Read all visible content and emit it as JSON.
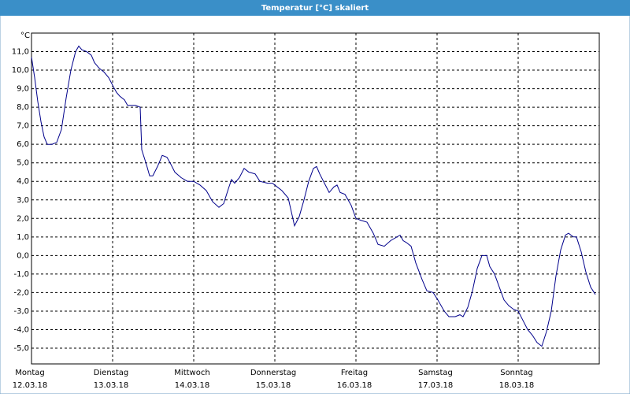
{
  "chart_data": {
    "type": "line",
    "title": "Temperatur [°C] skaliert",
    "y_unit": "°C",
    "x": [
      0,
      0.039,
      0.078,
      0.117,
      0.155,
      0.194,
      0.252,
      0.311,
      0.369,
      0.427,
      0.485,
      0.544,
      0.583,
      0.621,
      0.68,
      0.738,
      0.777,
      0.835,
      0.893,
      0.951,
      1.01,
      1.049,
      1.087,
      1.146,
      1.184,
      1.243,
      1.282,
      1.34,
      1.359,
      1.417,
      1.456,
      1.495,
      1.553,
      1.612,
      1.67,
      1.709,
      1.767,
      1.845,
      1.922,
      2.0,
      2.078,
      2.155,
      2.233,
      2.311,
      2.369,
      2.427,
      2.466,
      2.505,
      2.563,
      2.621,
      2.68,
      2.757,
      2.816,
      2.913,
      2.971,
      3.029,
      3.087,
      3.165,
      3.243,
      3.301,
      3.359,
      3.417,
      3.476,
      3.515,
      3.553,
      3.612,
      3.67,
      3.728,
      3.767,
      3.806,
      3.864,
      3.942,
      4.0,
      4.058,
      4.136,
      4.214,
      4.272,
      4.35,
      4.427,
      4.505,
      4.544,
      4.583,
      4.621,
      4.68,
      4.738,
      4.816,
      4.874,
      4.951,
      5.01,
      5.087,
      5.146,
      5.223,
      5.282,
      5.32,
      5.379,
      5.437,
      5.495,
      5.553,
      5.612,
      5.65,
      5.709,
      5.767,
      5.825,
      5.883,
      5.942,
      6.0,
      6.058,
      6.117,
      6.175,
      6.233,
      6.291,
      6.35,
      6.408,
      6.466,
      6.524,
      6.583,
      6.621,
      6.68,
      6.718,
      6.777,
      6.835,
      6.893,
      6.951
    ],
    "series": [
      {
        "name": "Temperatur",
        "color": "#00008b",
        "values": [
          10.7,
          9.6,
          8.3,
          7.2,
          6.4,
          6.0,
          6.0,
          6.1,
          6.8,
          8.5,
          10.0,
          11.0,
          11.3,
          11.1,
          11.0,
          10.8,
          10.4,
          10.1,
          9.9,
          9.6,
          9.1,
          8.8,
          8.6,
          8.4,
          8.1,
          8.1,
          8.1,
          8.0,
          5.7,
          4.9,
          4.3,
          4.3,
          4.8,
          5.4,
          5.3,
          5.0,
          4.5,
          4.2,
          4.0,
          4.0,
          3.8,
          3.5,
          2.9,
          2.6,
          2.8,
          3.6,
          4.1,
          3.9,
          4.2,
          4.7,
          4.5,
          4.4,
          4.0,
          3.9,
          3.9,
          3.7,
          3.5,
          3.1,
          1.6,
          2.1,
          3.0,
          4.0,
          4.7,
          4.8,
          4.4,
          3.9,
          3.4,
          3.7,
          3.8,
          3.4,
          3.3,
          2.7,
          2.0,
          1.9,
          1.8,
          1.2,
          0.6,
          0.5,
          0.8,
          1.0,
          1.1,
          0.8,
          0.7,
          0.5,
          -0.4,
          -1.3,
          -1.9,
          -2.0,
          -2.4,
          -3.0,
          -3.3,
          -3.3,
          -3.2,
          -3.3,
          -2.8,
          -1.9,
          -0.7,
          0.0,
          0.0,
          -0.6,
          -1.0,
          -1.7,
          -2.4,
          -2.7,
          -2.9,
          -3.0,
          -3.5,
          -4.0,
          -4.3,
          -4.7,
          -4.9,
          -4.1,
          -3.0,
          -1.1,
          0.3,
          1.1,
          1.2,
          1.0,
          1.0,
          0.2,
          -0.9,
          -1.7,
          -2.1
        ]
      }
    ],
    "xlim": [
      0,
      7
    ],
    "xticks": [
      {
        "value": 0,
        "label": "12.03.18"
      },
      {
        "value": 1,
        "label": "13.03.18"
      },
      {
        "value": 2,
        "label": "14.03.18"
      },
      {
        "value": 3,
        "label": "15.03.18"
      },
      {
        "value": 4,
        "label": "16.03.18"
      },
      {
        "value": 5,
        "label": "17.03.18"
      },
      {
        "value": 6,
        "label": "18.03.18"
      }
    ],
    "xtick_days": [
      "Montag",
      "Dienstag",
      "Mittwoch",
      "Donnerstag",
      "Freitag",
      "Samstag",
      "Sonntag"
    ],
    "ylim": [
      -5.85,
      12.0
    ],
    "yticks": [
      {
        "value": -5,
        "label": "-5,0"
      },
      {
        "value": -4,
        "label": "-4,0"
      },
      {
        "value": -3,
        "label": "-3,0"
      },
      {
        "value": -2,
        "label": "-2,0"
      },
      {
        "value": -1,
        "label": "-1,0"
      },
      {
        "value": 0,
        "label": "0,0"
      },
      {
        "value": 1,
        "label": "1,0"
      },
      {
        "value": 2,
        "label": "2,0"
      },
      {
        "value": 3,
        "label": "3,0"
      },
      {
        "value": 4,
        "label": "4,0"
      },
      {
        "value": 5,
        "label": "5,0"
      },
      {
        "value": 6,
        "label": "6,0"
      },
      {
        "value": 7,
        "label": "7,0"
      },
      {
        "value": 8,
        "label": "8,0"
      },
      {
        "value": 9,
        "label": "9,0"
      },
      {
        "value": 10,
        "label": "10,0"
      },
      {
        "value": 11,
        "label": "11,0"
      }
    ],
    "grid": true
  }
}
